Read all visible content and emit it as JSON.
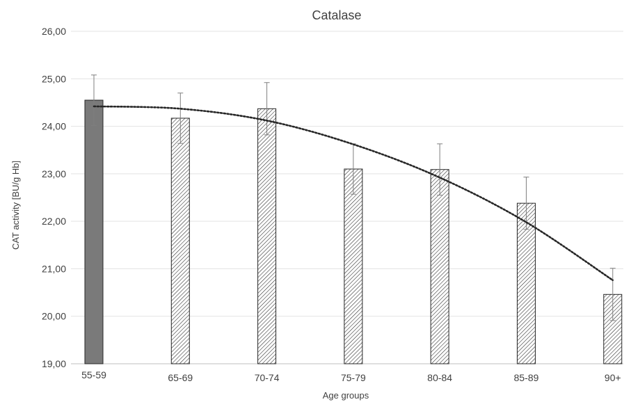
{
  "chart_data": {
    "type": "bar",
    "title": "Catalase",
    "xlabel": "Age groups",
    "ylabel": "CAT activity [BU/g Hb]",
    "ylim": [
      19,
      26
    ],
    "yticks": [
      "19,00",
      "20,00",
      "21,00",
      "22,00",
      "23,00",
      "24,00",
      "25,00",
      "26,00"
    ],
    "categories": [
      "55-59",
      "65-69",
      "70-74",
      "75-79",
      "80-84",
      "85-89",
      "90+"
    ],
    "values": [
      24.55,
      24.17,
      24.37,
      23.1,
      23.09,
      22.38,
      20.46
    ],
    "errors": [
      0.53,
      0.53,
      0.55,
      0.53,
      0.54,
      0.55,
      0.55
    ],
    "trendline": [
      24.42,
      24.37,
      24.12,
      23.62,
      22.92,
      21.98,
      20.76
    ],
    "grid": true,
    "legend": "none",
    "colors": {
      "control_bar": "#7a7a7a",
      "hatched_bar": "#ffffff",
      "hatch": "#262626"
    }
  }
}
